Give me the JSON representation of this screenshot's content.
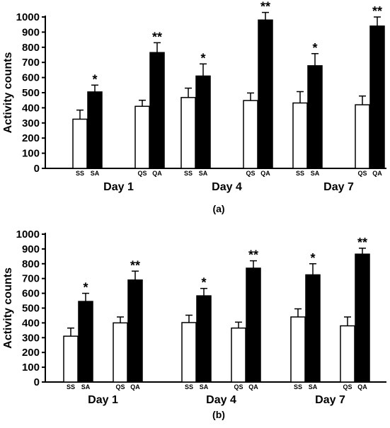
{
  "chart_data": [
    {
      "type": "bar",
      "panel_label": "(a)",
      "ylabel": "Activity counts",
      "ylim": [
        0,
        1000
      ],
      "yticks": [
        0,
        100,
        200,
        300,
        400,
        500,
        600,
        700,
        800,
        900,
        1000
      ],
      "groups": [
        {
          "label": "Day 1",
          "bars": [
            {
              "label": "SS",
              "value": 325,
              "error": 60,
              "fill": "white",
              "sig": ""
            },
            {
              "label": "SA",
              "value": 505,
              "error": 45,
              "fill": "black",
              "sig": "*"
            },
            {
              "label": "QS",
              "value": 410,
              "error": 40,
              "fill": "white",
              "sig": ""
            },
            {
              "label": "QA",
              "value": 765,
              "error": 65,
              "fill": "black",
              "sig": "**"
            }
          ]
        },
        {
          "label": "Day 4",
          "bars": [
            {
              "label": "SS",
              "value": 468,
              "error": 62,
              "fill": "white",
              "sig": ""
            },
            {
              "label": "SA",
              "value": 610,
              "error": 80,
              "fill": "black",
              "sig": "*"
            },
            {
              "label": "QS",
              "value": 448,
              "error": 50,
              "fill": "white",
              "sig": ""
            },
            {
              "label": "QA",
              "value": 980,
              "error": 50,
              "fill": "black",
              "sig": "**"
            }
          ]
        },
        {
          "label": "Day 7",
          "bars": [
            {
              "label": "SS",
              "value": 432,
              "error": 75,
              "fill": "white",
              "sig": ""
            },
            {
              "label": "SA",
              "value": 678,
              "error": 80,
              "fill": "black",
              "sig": "*"
            },
            {
              "label": "QS",
              "value": 420,
              "error": 58,
              "fill": "white",
              "sig": ""
            },
            {
              "label": "QA",
              "value": 940,
              "error": 60,
              "fill": "black",
              "sig": "**"
            }
          ]
        }
      ]
    },
    {
      "type": "bar",
      "panel_label": "(b)",
      "ylabel": "Activity counts",
      "ylim": [
        0,
        1000
      ],
      "yticks": [
        0,
        100,
        200,
        300,
        400,
        500,
        600,
        700,
        800,
        900,
        1000
      ],
      "groups": [
        {
          "label": "Day 1",
          "bars": [
            {
              "label": "SS",
              "value": 310,
              "error": 55,
              "fill": "white",
              "sig": ""
            },
            {
              "label": "SA",
              "value": 545,
              "error": 55,
              "fill": "black",
              "sig": "*"
            },
            {
              "label": "QS",
              "value": 400,
              "error": 40,
              "fill": "white",
              "sig": ""
            },
            {
              "label": "QA",
              "value": 690,
              "error": 60,
              "fill": "black",
              "sig": "**"
            }
          ]
        },
        {
          "label": "Day 4",
          "bars": [
            {
              "label": "SS",
              "value": 402,
              "error": 50,
              "fill": "white",
              "sig": ""
            },
            {
              "label": "SA",
              "value": 583,
              "error": 50,
              "fill": "black",
              "sig": "*"
            },
            {
              "label": "QS",
              "value": 365,
              "error": 40,
              "fill": "white",
              "sig": ""
            },
            {
              "label": "QA",
              "value": 770,
              "error": 50,
              "fill": "black",
              "sig": "**"
            }
          ]
        },
        {
          "label": "Day 7",
          "bars": [
            {
              "label": "SS",
              "value": 440,
              "error": 55,
              "fill": "white",
              "sig": ""
            },
            {
              "label": "SA",
              "value": 725,
              "error": 75,
              "fill": "black",
              "sig": "*"
            },
            {
              "label": "QS",
              "value": 380,
              "error": 60,
              "fill": "white",
              "sig": ""
            },
            {
              "label": "QA",
              "value": 865,
              "error": 40,
              "fill": "black",
              "sig": "**"
            }
          ]
        }
      ]
    }
  ]
}
